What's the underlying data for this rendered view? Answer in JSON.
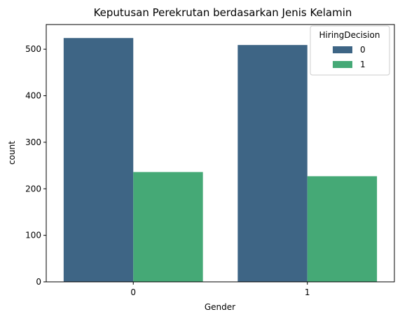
{
  "chart_data": {
    "type": "bar",
    "title": "Keputusan Perekrutan berdasarkan Jenis Kelamin",
    "xlabel": "Gender",
    "ylabel": "count",
    "categories": [
      "0",
      "1"
    ],
    "series": [
      {
        "name": "0",
        "color": "#3e6585",
        "values": [
          524,
          509
        ]
      },
      {
        "name": "1",
        "color": "#45a976",
        "values": [
          236,
          227
        ]
      }
    ],
    "ylim": [
      0,
      553
    ],
    "yticks": [
      0,
      100,
      200,
      300,
      400,
      500
    ],
    "legend": {
      "title": "HiringDecision",
      "position": "top-right"
    },
    "grid": false
  }
}
